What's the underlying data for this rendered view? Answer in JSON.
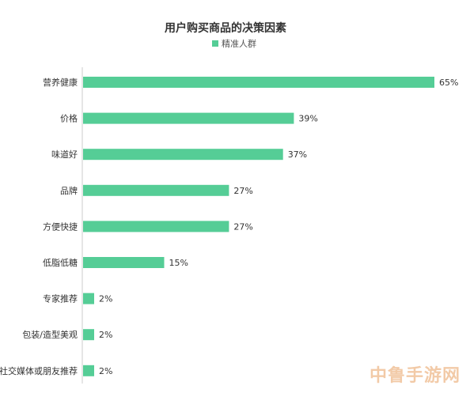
{
  "chart_data": {
    "type": "bar",
    "orientation": "horizontal",
    "title": "用户购买商品的决策因素",
    "categories": [
      "营养健康",
      "价格",
      "味道好",
      "品牌",
      "方便快捷",
      "低脂低糖",
      "专家推荐",
      "包装/造型美观",
      "社交媒体或朋友推荐"
    ],
    "series": [
      {
        "name": "精准人群",
        "values": [
          65,
          39,
          37,
          27,
          27,
          15,
          2,
          2,
          2
        ],
        "labels": [
          "65%",
          "39%",
          "37%",
          "27%",
          "27%",
          "15%",
          "2%",
          "2%",
          "2%"
        ]
      }
    ],
    "xlim": [
      0,
      65
    ],
    "grid": false,
    "legend_position": "top-center",
    "color": "#55cd96"
  },
  "watermark": "中鲁手游网"
}
